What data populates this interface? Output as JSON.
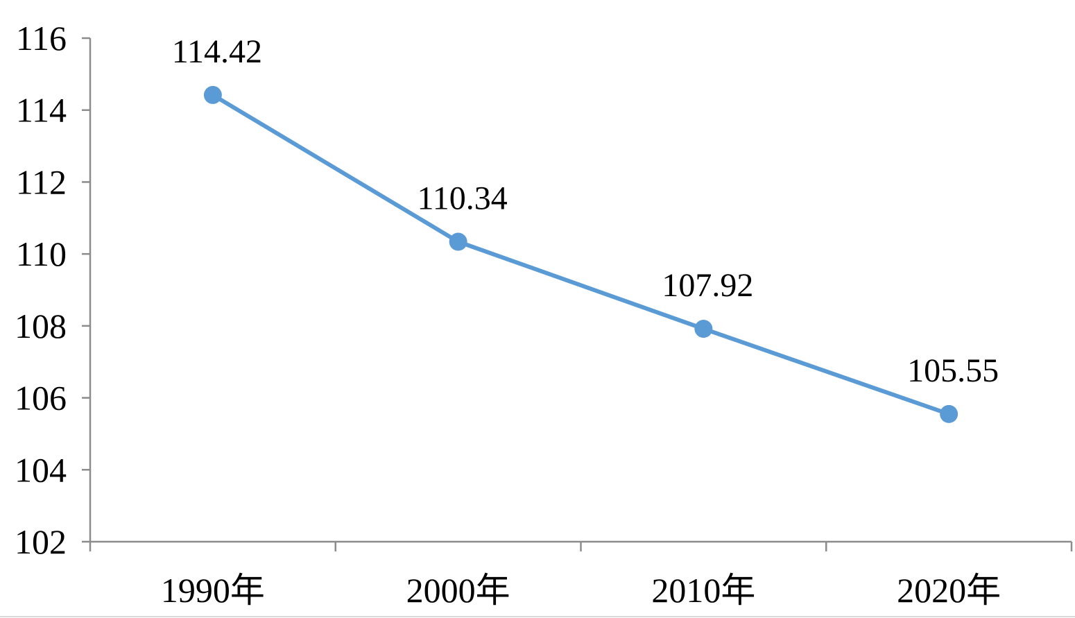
{
  "chart_data": {
    "type": "line",
    "title": "",
    "xlabel": "",
    "ylabel": "",
    "categories": [
      "1990年",
      "2000年",
      "2010年",
      "2020年"
    ],
    "series": [
      {
        "values": [
          114.42,
          110.34,
          107.92,
          105.55
        ]
      }
    ],
    "data_labels": [
      "114.42",
      "110.34",
      "107.92",
      "105.55"
    ],
    "ylim": [
      102,
      116
    ],
    "yticks": [
      102,
      104,
      106,
      108,
      110,
      112,
      114,
      116
    ],
    "ytick_labels": [
      "102",
      "104",
      "106",
      "108",
      "110",
      "112",
      "114",
      "116"
    ],
    "grid": false,
    "legend": "none",
    "colors": {
      "series": "#5b9bd5",
      "axis": "#8c8c8c"
    }
  }
}
